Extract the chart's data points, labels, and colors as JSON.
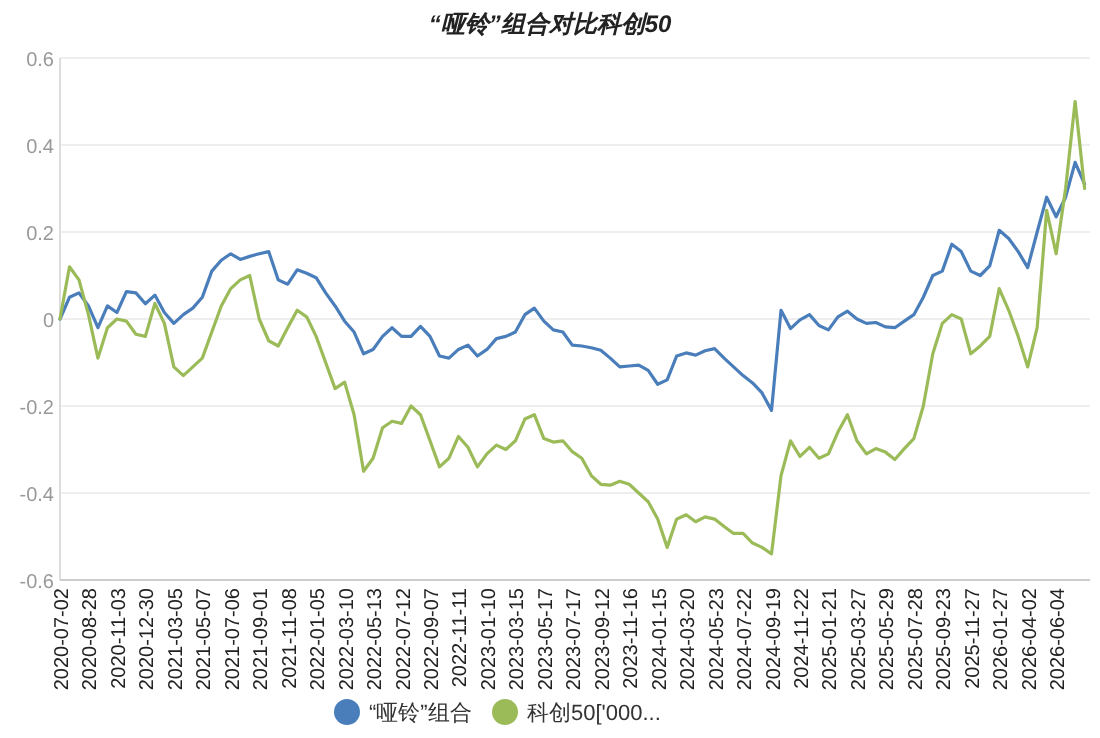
{
  "chart_data": {
    "type": "line",
    "title": "“哑铃”组合对比科创50",
    "categories": [
      "2020-07-02",
      null,
      null,
      "2020-08-28",
      null,
      null,
      "2020-11-03",
      null,
      null,
      "2020-12-30",
      null,
      null,
      "2021-03-05",
      null,
      null,
      "2021-05-07",
      null,
      null,
      "2021-07-06",
      null,
      null,
      "2021-09-01",
      null,
      null,
      "2021-11-08",
      null,
      null,
      "2022-01-05",
      null,
      null,
      "2022-03-10",
      null,
      null,
      "2022-05-13",
      null,
      null,
      "2022-07-12",
      null,
      null,
      "2022-09-07",
      null,
      null,
      "2022-11-11",
      null,
      null,
      "2023-01-10",
      null,
      null,
      "2023-03-15",
      null,
      null,
      "2023-05-17",
      null,
      null,
      "2023-07-17",
      null,
      null,
      "2023-09-12",
      null,
      null,
      "2023-11-16",
      null,
      null,
      "2024-01-15",
      null,
      null,
      "2024-03-20",
      null,
      null,
      "2024-05-23",
      null,
      null,
      "2024-07-22",
      null,
      null,
      "2024-09-19",
      null,
      null,
      "2024-11-22",
      null,
      null,
      "2025-01-21",
      null,
      null,
      "2025-03-27",
      null,
      null,
      "2025-05-29",
      null,
      null,
      "2025-07-28",
      null,
      null,
      "2025-09-23",
      null,
      null,
      "2025-11-27",
      null,
      null,
      "2026-01-27",
      null,
      null,
      "2026-04-02",
      null,
      null,
      "2026-06-04",
      null,
      null,
      null
    ],
    "series": [
      {
        "name": "“哑铃”组合",
        "color": "#4a7ebb",
        "values": [
          0,
          0.05,
          0.06,
          0.03,
          -0.02,
          0.03,
          0.015,
          0.063,
          0.06,
          0.035,
          0.055,
          0.015,
          -0.01,
          0.01,
          0.025,
          0.05,
          0.11,
          0.135,
          0.15,
          0.137,
          0.144,
          0.15,
          0.155,
          0.09,
          0.08,
          0.113,
          0.105,
          0.095,
          0.06,
          0.03,
          -0.005,
          -0.03,
          -0.08,
          -0.07,
          -0.04,
          -0.02,
          -0.04,
          -0.04,
          -0.017,
          -0.04,
          -0.085,
          -0.09,
          -0.07,
          -0.06,
          -0.085,
          -0.07,
          -0.045,
          -0.04,
          -0.03,
          0.01,
          0.025,
          -0.005,
          -0.025,
          -0.03,
          -0.06,
          -0.062,
          -0.066,
          -0.072,
          -0.09,
          -0.11,
          -0.108,
          -0.106,
          -0.118,
          -0.15,
          -0.14,
          -0.085,
          -0.078,
          -0.083,
          -0.073,
          -0.068,
          -0.09,
          -0.11,
          -0.13,
          -0.147,
          -0.17,
          -0.21,
          0.02,
          -0.022,
          -0.002,
          0.01,
          -0.015,
          -0.025,
          0.005,
          0.018,
          0,
          -0.01,
          -0.008,
          -0.018,
          -0.02,
          -0.005,
          0.01,
          0.05,
          0.1,
          0.11,
          0.172,
          0.155,
          0.11,
          0.1,
          0.122,
          0.204,
          0.185,
          0.155,
          0.118,
          0.2,
          0.28,
          0.235,
          0.28,
          0.36,
          0.31
        ]
      },
      {
        "name": "科创50['000...",
        "color": "#9bbb59",
        "values": [
          0,
          0.12,
          0.09,
          0.01,
          -0.09,
          -0.02,
          0,
          -0.005,
          -0.035,
          -0.04,
          0.036,
          -0.01,
          -0.11,
          -0.13,
          -0.11,
          -0.09,
          -0.03,
          0.03,
          0.07,
          0.09,
          0.1,
          0,
          -0.05,
          -0.062,
          -0.02,
          0.02,
          0.005,
          -0.04,
          -0.1,
          -0.16,
          -0.145,
          -0.22,
          -0.35,
          -0.32,
          -0.25,
          -0.235,
          -0.24,
          -0.2,
          -0.22,
          -0.28,
          -0.34,
          -0.32,
          -0.27,
          -0.295,
          -0.34,
          -0.31,
          -0.29,
          -0.3,
          -0.28,
          -0.23,
          -0.22,
          -0.275,
          -0.283,
          -0.28,
          -0.305,
          -0.32,
          -0.36,
          -0.38,
          -0.382,
          -0.373,
          -0.38,
          -0.4,
          -0.42,
          -0.46,
          -0.525,
          -0.46,
          -0.45,
          -0.466,
          -0.455,
          -0.46,
          -0.477,
          -0.493,
          -0.493,
          -0.515,
          -0.525,
          -0.54,
          -0.36,
          -0.28,
          -0.316,
          -0.295,
          -0.32,
          -0.31,
          -0.26,
          -0.22,
          -0.28,
          -0.31,
          -0.298,
          -0.306,
          -0.323,
          -0.298,
          -0.275,
          -0.2,
          -0.08,
          -0.01,
          0.01,
          0,
          -0.08,
          -0.062,
          -0.04,
          0.07,
          0.02,
          -0.04,
          -0.11,
          -0.02,
          0.25,
          0.15,
          0.3,
          0.5,
          0.3
        ]
      }
    ],
    "ylim": [
      -0.6,
      0.6
    ],
    "yticks": [
      -0.6,
      -0.4,
      -0.2,
      0,
      0.2,
      0.4,
      0.6
    ],
    "grid": "y",
    "legend": "bottom"
  }
}
